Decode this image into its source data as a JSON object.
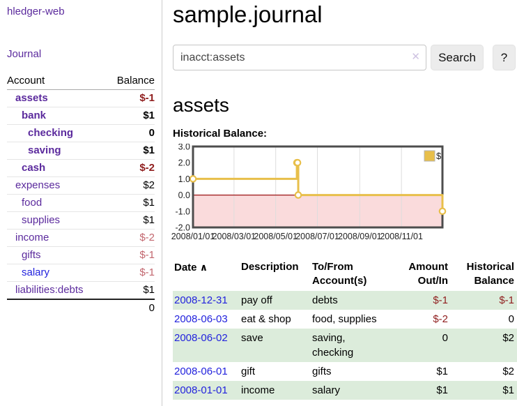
{
  "colors": {
    "link_purple": "#5b2a9d",
    "link_blue": "#2222dd",
    "negative_strong": "#8f1d1d",
    "negative_soft": "#c2666e",
    "row_green": "#dcecdb",
    "button_gray": "#ececec"
  },
  "sidebar": {
    "brand": "hledger-web",
    "journal_link": "Journal",
    "accounts_table": {
      "headers": {
        "account": "Account",
        "balance": "Balance"
      },
      "rows": [
        {
          "name": "assets",
          "balance": "$-1"
        },
        {
          "name": "bank",
          "balance": "$1"
        },
        {
          "name": "checking",
          "balance": "0"
        },
        {
          "name": "saving",
          "balance": "$1"
        },
        {
          "name": "cash",
          "balance": "$-2"
        },
        {
          "name": "expenses",
          "balance": "$2"
        },
        {
          "name": "food",
          "balance": "$1"
        },
        {
          "name": "supplies",
          "balance": "$1"
        },
        {
          "name": "income",
          "balance": "$-2"
        },
        {
          "name": "gifts",
          "balance": "$-1"
        },
        {
          "name": "salary",
          "balance": "$-1"
        },
        {
          "name": "liabilities:debts",
          "balance": "$1"
        }
      ],
      "total": "0"
    }
  },
  "header": {
    "title": "sample.journal"
  },
  "search": {
    "value": "inacct:assets",
    "clear_icon": "✕",
    "search_button": "Search",
    "help_button": "?"
  },
  "register": {
    "heading": "assets",
    "chart_label": "Historical Balance:",
    "table": {
      "headers": {
        "date": "Date",
        "sort_indicator": "∧",
        "description": "Description",
        "accounts": "To/From Account(s)",
        "amount": "Amount Out/In",
        "balance": "Historical Balance"
      },
      "rows": [
        {
          "date": "2008-12-31",
          "description": "pay off",
          "accounts": "debts",
          "amount": "$-1",
          "balance": "$-1"
        },
        {
          "date": "2008-06-03",
          "description": "eat & shop",
          "accounts": "food, supplies",
          "amount": "$-2",
          "balance": "0"
        },
        {
          "date": "2008-06-02",
          "description": "save",
          "accounts": "saving, checking",
          "amount": "0",
          "balance": "$2"
        },
        {
          "date": "2008-06-01",
          "description": "gift",
          "accounts": "gifts",
          "amount": "$1",
          "balance": "$2"
        },
        {
          "date": "2008-01-01",
          "description": "income",
          "accounts": "salary",
          "amount": "$1",
          "balance": "$1"
        }
      ]
    }
  },
  "chart_data": {
    "type": "line",
    "title": "Historical Balance:",
    "line_style": "step-after",
    "xrange": [
      "2008-01-01",
      "2008-12-31"
    ],
    "ylim": [
      -2.0,
      3.0
    ],
    "series": [
      {
        "name": "$",
        "points": [
          {
            "date": "2008-01-01",
            "value": 1
          },
          {
            "date": "2008-06-01",
            "value": 2
          },
          {
            "date": "2008-06-02",
            "value": 2
          },
          {
            "date": "2008-06-03",
            "value": 0
          },
          {
            "date": "2008-12-31",
            "value": -1
          }
        ]
      }
    ],
    "xticks": [
      {
        "date": "2008-01-01",
        "label": "2008/01/01"
      },
      {
        "date": "2008-03-01",
        "label": "2008/03/01"
      },
      {
        "date": "2008-05-01",
        "label": "2008/05/01"
      },
      {
        "date": "2008-07-01",
        "label": "2008/07/01"
      },
      {
        "date": "2008-09-01",
        "label": "2008/09/01"
      },
      {
        "date": "2008-11-01",
        "label": "2008/11/01"
      }
    ],
    "yticks": [
      {
        "value": 3,
        "label": "3.0"
      },
      {
        "value": 2,
        "label": "2.0"
      },
      {
        "value": 1,
        "label": "1.0"
      },
      {
        "value": 0,
        "label": "0.0"
      },
      {
        "value": -1,
        "label": "-1.0"
      },
      {
        "value": -2,
        "label": "-2.0"
      }
    ],
    "legend_position": "top-right",
    "grid": "vertical-only",
    "colors": {
      "line": "#e8bf4a",
      "marker_fill": "#ffffff",
      "negative_region": "#fadbdc",
      "zero_line": "#9c1414",
      "border": "#4d4d4d",
      "grid": "#dddddd"
    }
  }
}
